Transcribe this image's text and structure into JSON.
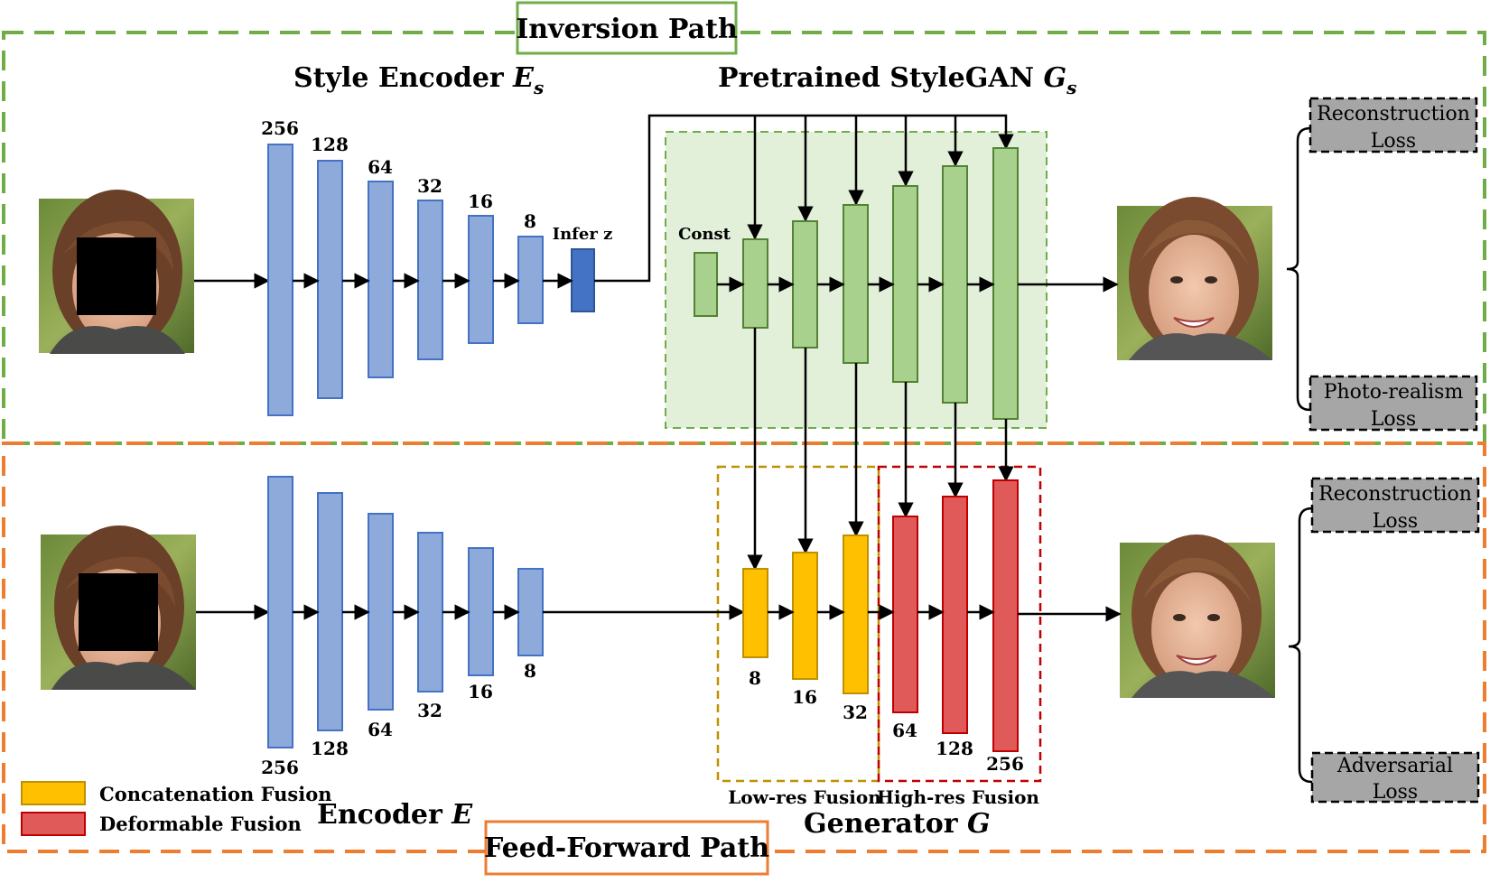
{
  "colors": {
    "inversion_green": "#70ad47",
    "feedforward_orange": "#ed7d31",
    "encoder_blue": "#8eaadb",
    "encoder_blue_dark": "#4472c4",
    "stylegan_green": "#a9d18e",
    "stylegan_region": "#e2efd9",
    "fusion_yellow": "#ffc000",
    "fusion_red": "#e05a5a",
    "loss_gray": "#a6a6a6",
    "lowres_border": "#bf9000",
    "highres_border": "#c00000"
  },
  "inversion_path": {
    "label": "Inversion Path",
    "style_encoder_title": "Style Encoder ",
    "style_encoder_sym": "E",
    "style_encoder_sub": "s",
    "stylegan_title": "Pretrained StyleGAN ",
    "stylegan_sym": "G",
    "stylegan_sub": "s",
    "encoder_sizes": [
      "256",
      "128",
      "64",
      "32",
      "16",
      "8"
    ],
    "infer_label": "Infer z",
    "const_label": "Const",
    "losses": [
      {
        "line1": "Reconstruction",
        "line2": "Loss"
      },
      {
        "line1": "Photo-realism",
        "line2": "Loss"
      }
    ]
  },
  "feedforward_path": {
    "label": "Feed-Forward Path",
    "encoder_title": "Encoder ",
    "encoder_sym": "E",
    "generator_title": "Generator ",
    "generator_sym": "G",
    "encoder_sizes": [
      "256",
      "128",
      "64",
      "32",
      "16",
      "8"
    ],
    "fusion_sizes": [
      "8",
      "16",
      "32",
      "64",
      "128",
      "256"
    ],
    "lowres_label": "Low-res Fusion",
    "highres_label": "High-res Fusion",
    "losses": [
      {
        "line1": "Reconstruction",
        "line2": "Loss"
      },
      {
        "line1": "Adversarial",
        "line2": "Loss"
      }
    ]
  },
  "legend": {
    "concat": "Concatenation Fusion",
    "deform": "Deformable Fusion"
  }
}
